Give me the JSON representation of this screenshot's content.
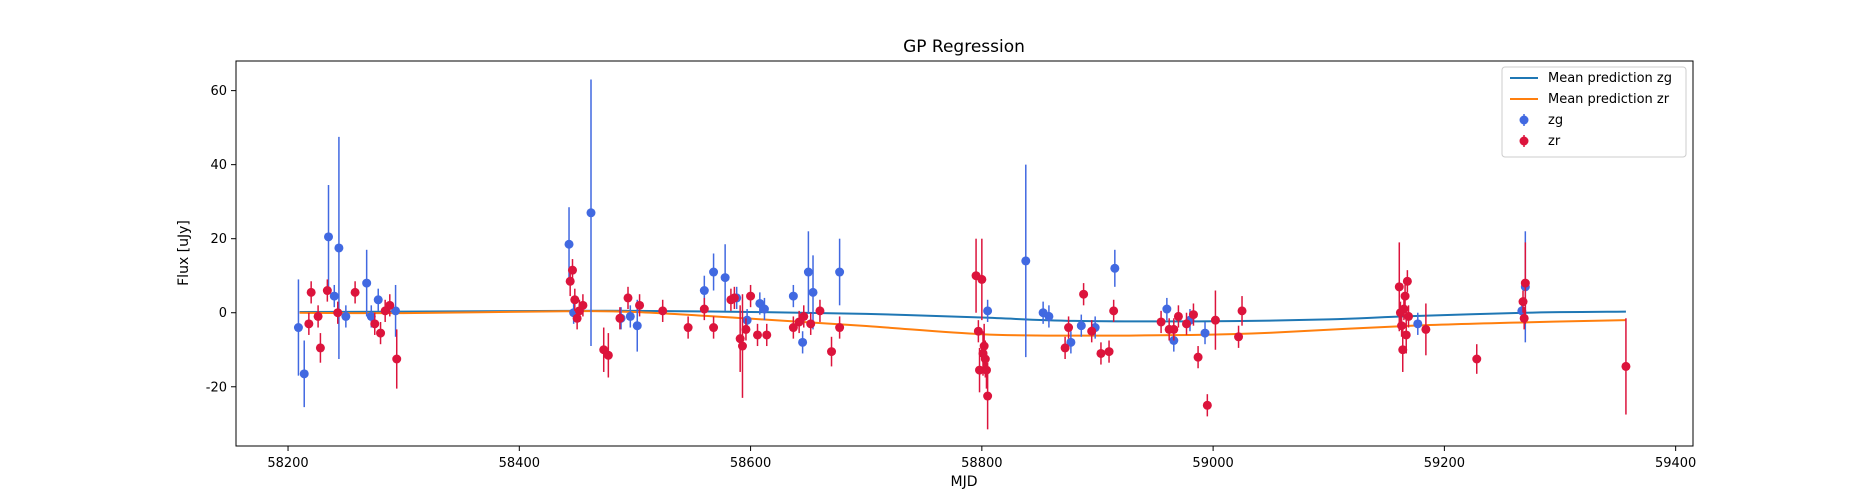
{
  "chart_data": {
    "type": "scatter",
    "title": "GP Regression",
    "xlabel": "MJD",
    "ylabel": "Flux [uJy]",
    "xlim": [
      58155,
      59415
    ],
    "ylim": [
      -36,
      68
    ],
    "xticks": [
      58200,
      58400,
      58600,
      58800,
      59000,
      59200,
      59400
    ],
    "yticks": [
      -20,
      0,
      20,
      40,
      60
    ],
    "grid": false,
    "legend_placement": "top-right",
    "legend_entries": [
      "Mean prediction zg",
      "Mean prediction zr",
      "zg",
      "zr"
    ],
    "colors": {
      "zg_line": "#1f77b4",
      "zr_line": "#ff7f0e",
      "zg_points": "#4169e1",
      "zr_points": "#dc143c"
    },
    "series": [
      {
        "name": "Mean prediction zg",
        "kind": "line",
        "x": [
          58210,
          58300,
          58440,
          58500,
          58600,
          58700,
          58800,
          58880,
          59000,
          59100,
          59165,
          59270,
          59357
        ],
        "y": [
          0.2,
          0.3,
          0.5,
          0.5,
          0.2,
          -0.3,
          -1.3,
          -2.2,
          -2.3,
          -1.8,
          -1.0,
          0.0,
          0.3
        ]
      },
      {
        "name": "Mean prediction zr",
        "kind": "line",
        "x": [
          58210,
          58300,
          58440,
          58500,
          58600,
          58700,
          58800,
          58880,
          58980,
          59050,
          59165,
          59270,
          59357
        ],
        "y": [
          0.0,
          -0.1,
          0.4,
          0.2,
          -1.6,
          -3.6,
          -5.8,
          -6.2,
          -6.0,
          -5.4,
          -3.6,
          -2.6,
          -2.0
        ]
      },
      {
        "name": "zg",
        "kind": "errorbar",
        "points": [
          {
            "x": 58209,
            "y": -4,
            "err": 13
          },
          {
            "x": 58214,
            "y": -16.5,
            "err": 9
          },
          {
            "x": 58235,
            "y": 20.5,
            "err": 14
          },
          {
            "x": 58240,
            "y": 4.5,
            "err": 3
          },
          {
            "x": 58244,
            "y": 17.5,
            "err": 30
          },
          {
            "x": 58250,
            "y": -1,
            "err": 3
          },
          {
            "x": 58268,
            "y": 8,
            "err": 9
          },
          {
            "x": 58272,
            "y": -1,
            "err": 3
          },
          {
            "x": 58278,
            "y": 3.5,
            "err": 3
          },
          {
            "x": 58293,
            "y": 0.5,
            "err": 7
          },
          {
            "x": 58443,
            "y": 18.5,
            "err": 10
          },
          {
            "x": 58447,
            "y": 0,
            "err": 3
          },
          {
            "x": 58462,
            "y": 27,
            "err": 36
          },
          {
            "x": 58488,
            "y": -1.5,
            "err": 3
          },
          {
            "x": 58496,
            "y": -1,
            "err": 3
          },
          {
            "x": 58502,
            "y": -3.5,
            "err": 7
          },
          {
            "x": 58560,
            "y": 6,
            "err": 4
          },
          {
            "x": 58568,
            "y": 11,
            "err": 5
          },
          {
            "x": 58578,
            "y": 9.5,
            "err": 9
          },
          {
            "x": 58588,
            "y": 4,
            "err": 3
          },
          {
            "x": 58597,
            "y": -2,
            "err": 3
          },
          {
            "x": 58608,
            "y": 2.5,
            "err": 3
          },
          {
            "x": 58612,
            "y": 1,
            "err": 3
          },
          {
            "x": 58637,
            "y": 4.5,
            "err": 3
          },
          {
            "x": 58645,
            "y": -8,
            "err": 3
          },
          {
            "x": 58650,
            "y": 11,
            "err": 11
          },
          {
            "x": 58654,
            "y": 5.5,
            "err": 10
          },
          {
            "x": 58677,
            "y": 11,
            "err": 9
          },
          {
            "x": 58805,
            "y": 0.5,
            "err": 3
          },
          {
            "x": 58838,
            "y": 14,
            "err": 26
          },
          {
            "x": 58853,
            "y": 0,
            "err": 3
          },
          {
            "x": 58858,
            "y": -1,
            "err": 3
          },
          {
            "x": 58877,
            "y": -8,
            "err": 3
          },
          {
            "x": 58886,
            "y": -3.5,
            "err": 3
          },
          {
            "x": 58898,
            "y": -4,
            "err": 3
          },
          {
            "x": 58915,
            "y": 12,
            "err": 5
          },
          {
            "x": 58960,
            "y": 1,
            "err": 3
          },
          {
            "x": 58966,
            "y": -7.5,
            "err": 3
          },
          {
            "x": 58980,
            "y": -2,
            "err": 3
          },
          {
            "x": 58993,
            "y": -5.5,
            "err": 3
          },
          {
            "x": 59177,
            "y": -3,
            "err": 3
          },
          {
            "x": 59267,
            "y": 0.5,
            "err": 3
          },
          {
            "x": 59270,
            "y": 7,
            "err": 15
          }
        ]
      },
      {
        "name": "zr",
        "kind": "errorbar",
        "points": [
          {
            "x": 58218,
            "y": -3,
            "err": 3
          },
          {
            "x": 58220,
            "y": 5.5,
            "err": 3
          },
          {
            "x": 58226,
            "y": -1,
            "err": 3
          },
          {
            "x": 58228,
            "y": -9.5,
            "err": 4
          },
          {
            "x": 58234,
            "y": 6,
            "err": 3
          },
          {
            "x": 58243,
            "y": 0,
            "err": 3
          },
          {
            "x": 58258,
            "y": 5.5,
            "err": 3
          },
          {
            "x": 58275,
            "y": -3,
            "err": 3
          },
          {
            "x": 58280,
            "y": -5.5,
            "err": 3
          },
          {
            "x": 58284,
            "y": 0.5,
            "err": 3
          },
          {
            "x": 58288,
            "y": 2,
            "err": 3
          },
          {
            "x": 58294,
            "y": -12.5,
            "err": 8
          },
          {
            "x": 58444,
            "y": 8.5,
            "err": 4
          },
          {
            "x": 58446,
            "y": 11.5,
            "err": 3
          },
          {
            "x": 58448,
            "y": 3.5,
            "err": 3
          },
          {
            "x": 58450,
            "y": -1.5,
            "err": 3
          },
          {
            "x": 58452,
            "y": 0.5,
            "err": 3
          },
          {
            "x": 58455,
            "y": 2,
            "err": 3
          },
          {
            "x": 58473,
            "y": -10,
            "err": 6
          },
          {
            "x": 58477,
            "y": -11.5,
            "err": 6
          },
          {
            "x": 58487,
            "y": -1.5,
            "err": 3
          },
          {
            "x": 58494,
            "y": 4,
            "err": 3
          },
          {
            "x": 58504,
            "y": 2,
            "err": 3
          },
          {
            "x": 58524,
            "y": 0.5,
            "err": 3
          },
          {
            "x": 58546,
            "y": -4,
            "err": 3
          },
          {
            "x": 58560,
            "y": 1,
            "err": 3
          },
          {
            "x": 58568,
            "y": -4,
            "err": 3
          },
          {
            "x": 58583,
            "y": 3.5,
            "err": 3
          },
          {
            "x": 58586,
            "y": 4,
            "err": 3
          },
          {
            "x": 58591,
            "y": -7,
            "err": 9
          },
          {
            "x": 58593,
            "y": -9,
            "err": 14
          },
          {
            "x": 58596,
            "y": -4.5,
            "err": 3
          },
          {
            "x": 58600,
            "y": 4.5,
            "err": 3
          },
          {
            "x": 58606,
            "y": -6,
            "err": 3
          },
          {
            "x": 58614,
            "y": -6,
            "err": 3
          },
          {
            "x": 58637,
            "y": -4,
            "err": 3
          },
          {
            "x": 58642,
            "y": -2.5,
            "err": 3
          },
          {
            "x": 58646,
            "y": -1,
            "err": 3
          },
          {
            "x": 58652,
            "y": -3,
            "err": 3
          },
          {
            "x": 58660,
            "y": 0.5,
            "err": 3
          },
          {
            "x": 58670,
            "y": -10.5,
            "err": 4
          },
          {
            "x": 58677,
            "y": -4,
            "err": 3
          },
          {
            "x": 58795,
            "y": 10,
            "err": 10
          },
          {
            "x": 58797,
            "y": -5,
            "err": 3
          },
          {
            "x": 58798,
            "y": -15.5,
            "err": 6
          },
          {
            "x": 58800,
            "y": 9,
            "err": 11
          },
          {
            "x": 58801,
            "y": -11,
            "err": 6
          },
          {
            "x": 58802,
            "y": -9,
            "err": 6
          },
          {
            "x": 58803,
            "y": -12.5,
            "err": 5
          },
          {
            "x": 58804,
            "y": -15.5,
            "err": 5
          },
          {
            "x": 58805,
            "y": -22.5,
            "err": 9
          },
          {
            "x": 58872,
            "y": -9.5,
            "err": 3
          },
          {
            "x": 58875,
            "y": -4,
            "err": 3
          },
          {
            "x": 58888,
            "y": 5,
            "err": 3
          },
          {
            "x": 58895,
            "y": -5,
            "err": 3
          },
          {
            "x": 58903,
            "y": -11,
            "err": 3
          },
          {
            "x": 58910,
            "y": -10.5,
            "err": 3
          },
          {
            "x": 58914,
            "y": 0.5,
            "err": 3
          },
          {
            "x": 58955,
            "y": -2.5,
            "err": 3
          },
          {
            "x": 58962,
            "y": -4.5,
            "err": 3
          },
          {
            "x": 58966,
            "y": -4.5,
            "err": 3
          },
          {
            "x": 58970,
            "y": -1,
            "err": 3
          },
          {
            "x": 58977,
            "y": -3,
            "err": 3
          },
          {
            "x": 58983,
            "y": -0.5,
            "err": 3
          },
          {
            "x": 58987,
            "y": -12,
            "err": 3
          },
          {
            "x": 58995,
            "y": -25,
            "err": 3
          },
          {
            "x": 59002,
            "y": -2,
            "err": 8
          },
          {
            "x": 59022,
            "y": -6.5,
            "err": 3
          },
          {
            "x": 59025,
            "y": 0.5,
            "err": 4
          },
          {
            "x": 59161,
            "y": 7,
            "err": 12
          },
          {
            "x": 59162,
            "y": 0,
            "err": 3
          },
          {
            "x": 59163,
            "y": -3.5,
            "err": 3
          },
          {
            "x": 59164,
            "y": -10,
            "err": 6
          },
          {
            "x": 59165,
            "y": 1,
            "err": 3
          },
          {
            "x": 59166,
            "y": 4.5,
            "err": 3
          },
          {
            "x": 59167,
            "y": -6,
            "err": 5
          },
          {
            "x": 59168,
            "y": 8.5,
            "err": 3
          },
          {
            "x": 59169,
            "y": -1,
            "err": 3
          },
          {
            "x": 59184,
            "y": -4.5,
            "err": 7
          },
          {
            "x": 59228,
            "y": -12.5,
            "err": 4
          },
          {
            "x": 59268,
            "y": 3,
            "err": 3
          },
          {
            "x": 59269,
            "y": -1.5,
            "err": 3
          },
          {
            "x": 59270,
            "y": 8,
            "err": 11
          },
          {
            "x": 59357,
            "y": -14.5,
            "err": 13
          }
        ]
      }
    ]
  }
}
